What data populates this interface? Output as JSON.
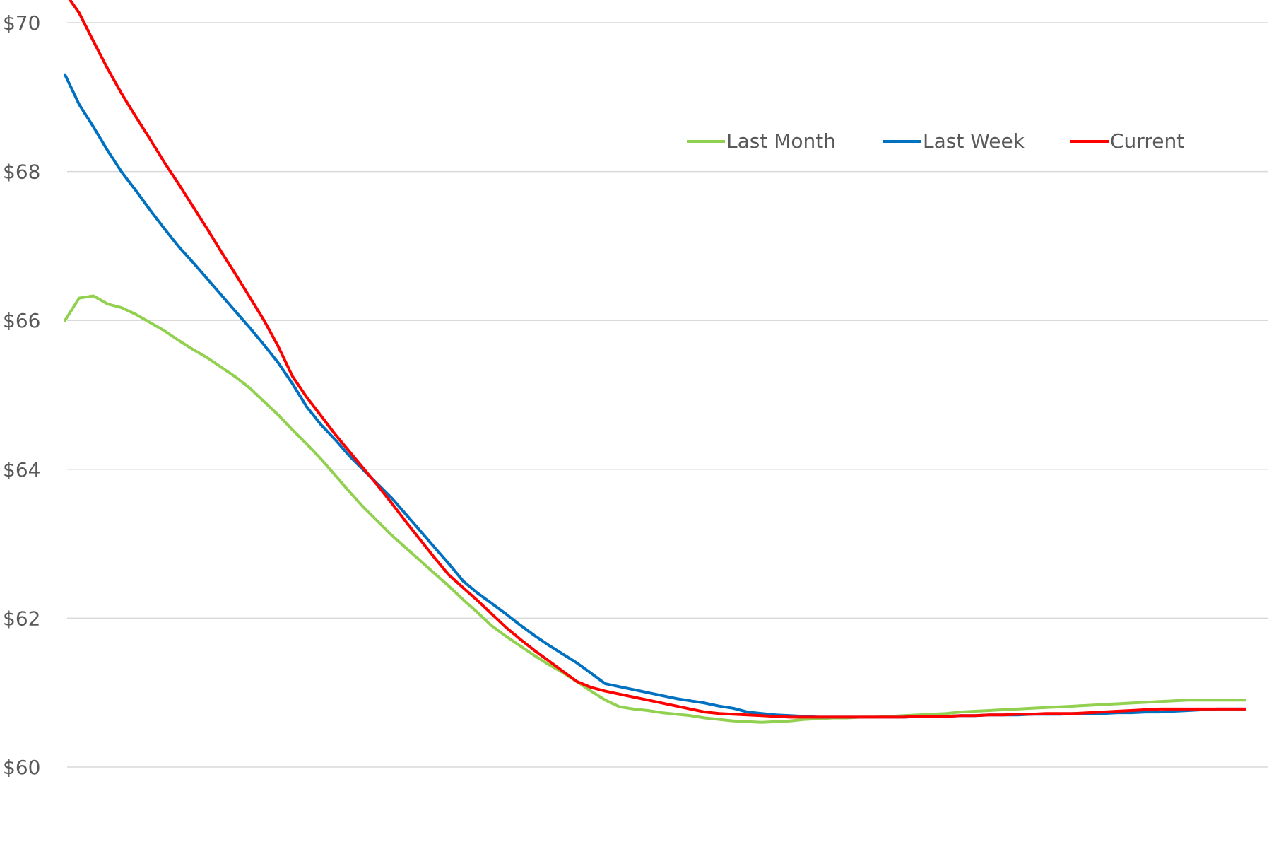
{
  "chart_data": {
    "type": "line",
    "title": "",
    "xlabel": "",
    "ylabel": "",
    "ylim": [
      59,
      70.5
    ],
    "yticks": [
      60,
      62,
      64,
      66,
      68,
      70
    ],
    "ytick_labels": [
      "$60",
      "$62",
      "$64",
      "$66",
      "$68",
      "$70"
    ],
    "grid": true,
    "legend_position": "top-right",
    "x": [
      1,
      2,
      3,
      4,
      5,
      6,
      7,
      8,
      9,
      10,
      11,
      12,
      13,
      14,
      15,
      16,
      17,
      18,
      19,
      20,
      21,
      22,
      23,
      24,
      25,
      26,
      27,
      28,
      29,
      30,
      31,
      32,
      33,
      34,
      35,
      36,
      37,
      38,
      39,
      40,
      41,
      42,
      43,
      44,
      45,
      46,
      47,
      48,
      49,
      50,
      51,
      52,
      53,
      54,
      55,
      56,
      57,
      58,
      59,
      60,
      61,
      62,
      63,
      64,
      65,
      66,
      67,
      68,
      69,
      70,
      71,
      72,
      73,
      74,
      75,
      76,
      77,
      78,
      79,
      80,
      81,
      82,
      83,
      84
    ],
    "series": [
      {
        "name": "Last Month",
        "color": "#92d050",
        "values": [
          66.0,
          66.3,
          66.33,
          66.22,
          66.17,
          66.08,
          65.97,
          65.86,
          65.73,
          65.61,
          65.5,
          65.37,
          65.24,
          65.09,
          64.91,
          64.73,
          64.53,
          64.34,
          64.14,
          63.92,
          63.7,
          63.49,
          63.3,
          63.11,
          62.94,
          62.77,
          62.6,
          62.43,
          62.25,
          62.08,
          61.9,
          61.76,
          61.63,
          61.5,
          61.38,
          61.27,
          61.15,
          61.02,
          60.9,
          60.81,
          60.78,
          60.76,
          60.73,
          60.71,
          60.69,
          60.66,
          60.64,
          60.62,
          60.61,
          60.6,
          60.61,
          60.62,
          60.64,
          60.65,
          60.66,
          60.66,
          60.67,
          60.67,
          60.68,
          60.69,
          60.7,
          60.71,
          60.72,
          60.74,
          60.75,
          60.76,
          60.77,
          60.78,
          60.79,
          60.8,
          60.81,
          60.82,
          60.83,
          60.84,
          60.85,
          60.86,
          60.87,
          60.88,
          60.89,
          60.9,
          60.9,
          60.9,
          60.9,
          60.9
        ]
      },
      {
        "name": "Last Week",
        "color": "#0070c0",
        "values": [
          69.3,
          68.9,
          68.6,
          68.28,
          67.99,
          67.74,
          67.48,
          67.23,
          66.99,
          66.78,
          66.56,
          66.34,
          66.12,
          65.9,
          65.67,
          65.43,
          65.15,
          64.84,
          64.6,
          64.4,
          64.18,
          63.99,
          63.8,
          63.61,
          63.39,
          63.17,
          62.95,
          62.73,
          62.5,
          62.34,
          62.2,
          62.06,
          61.91,
          61.77,
          61.64,
          61.52,
          61.4,
          61.26,
          61.12,
          61.08,
          61.04,
          61.0,
          60.96,
          60.92,
          60.89,
          60.86,
          60.82,
          60.79,
          60.74,
          60.72,
          60.7,
          60.69,
          60.68,
          60.67,
          60.67,
          60.67,
          60.67,
          60.67,
          60.67,
          60.67,
          60.68,
          60.68,
          60.68,
          60.69,
          60.69,
          60.7,
          60.7,
          60.7,
          60.71,
          60.71,
          60.71,
          60.72,
          60.72,
          60.72,
          60.73,
          60.73,
          60.74,
          60.74,
          60.75,
          60.76,
          60.77,
          60.78,
          60.78,
          60.78
        ]
      },
      {
        "name": "Current",
        "color": "#ff0000",
        "values": [
          70.4,
          70.13,
          69.75,
          69.38,
          69.04,
          68.73,
          68.43,
          68.12,
          67.83,
          67.53,
          67.23,
          66.92,
          66.62,
          66.31,
          66.0,
          65.65,
          65.25,
          64.97,
          64.72,
          64.47,
          64.24,
          64.01,
          63.78,
          63.54,
          63.29,
          63.05,
          62.81,
          62.58,
          62.41,
          62.24,
          62.06,
          61.88,
          61.72,
          61.57,
          61.43,
          61.29,
          61.15,
          61.07,
          61.02,
          60.98,
          60.94,
          60.9,
          60.86,
          60.82,
          60.78,
          60.74,
          60.72,
          60.71,
          60.7,
          60.69,
          60.68,
          60.67,
          60.67,
          60.67,
          60.67,
          60.67,
          60.67,
          60.67,
          60.67,
          60.67,
          60.68,
          60.68,
          60.68,
          60.69,
          60.69,
          60.7,
          60.7,
          60.71,
          60.71,
          60.72,
          60.72,
          60.72,
          60.73,
          60.74,
          60.75,
          60.76,
          60.77,
          60.78,
          60.78,
          60.78,
          60.78,
          60.78,
          60.78,
          60.78
        ]
      }
    ]
  }
}
